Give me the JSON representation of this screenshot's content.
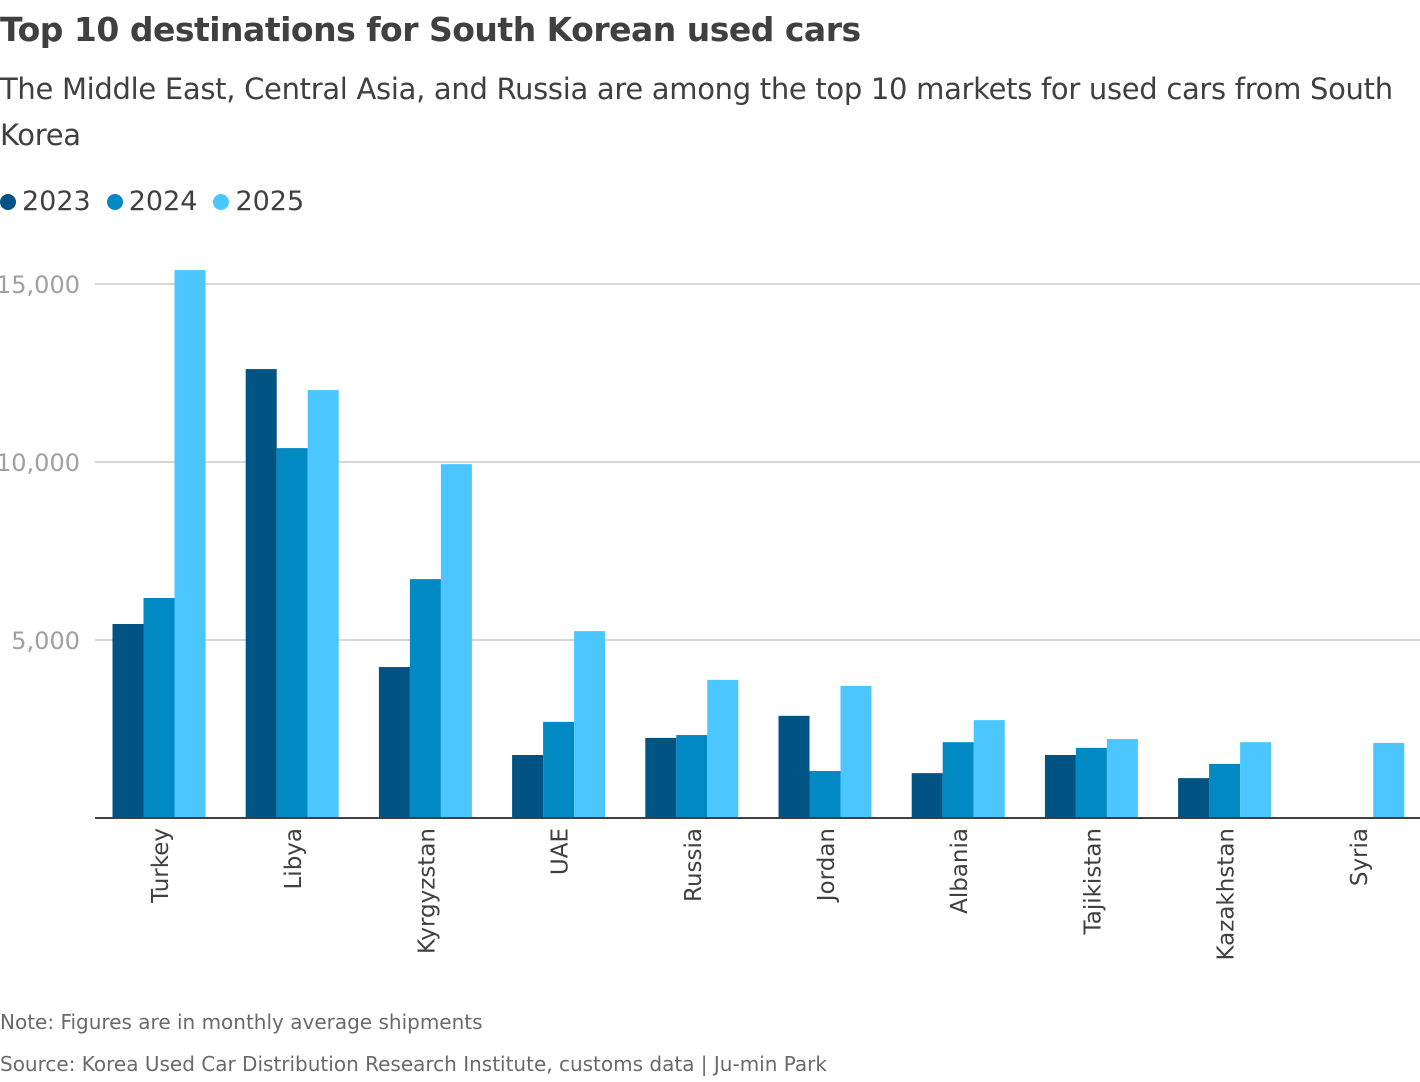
{
  "chart_data": {
    "type": "bar",
    "title": "Top 10 destinations for South Korean used cars",
    "subtitle": "The Middle East, Central Asia, and Russia are among the top 10 markets for used cars from South Korea",
    "categories": [
      "Turkey",
      "Libya",
      "Kyrgyzstan",
      "UAE",
      "Russia",
      "Jordan",
      "Albania",
      "Tajikistan",
      "Kazakhstan",
      "Syria"
    ],
    "series": [
      {
        "name": "2023",
        "color": "#005383",
        "values": [
          5450,
          12610,
          4240,
          1770,
          2250,
          2870,
          1260,
          1770,
          1120,
          null
        ]
      },
      {
        "name": "2024",
        "color": "#0089c2",
        "values": [
          6180,
          10390,
          6710,
          2700,
          2330,
          1320,
          2130,
          1970,
          1520,
          null
        ]
      },
      {
        "name": "2025",
        "color": "#4cc6ff",
        "values": [
          15390,
          12020,
          9940,
          5250,
          3880,
          3710,
          2750,
          2220,
          2130,
          2110
        ]
      }
    ],
    "ylim": [
      0,
      15500
    ],
    "yticks": [
      5000,
      10000,
      15000
    ],
    "ytick_labels": [
      "5,000",
      "10,000",
      "15,000"
    ],
    "grid": true,
    "legend_position": "top-left",
    "note": "Note: Figures are in monthly average shipments",
    "source": "Source: Korea Used Car Distribution Research Institute, customs data | Ju-min Park"
  }
}
